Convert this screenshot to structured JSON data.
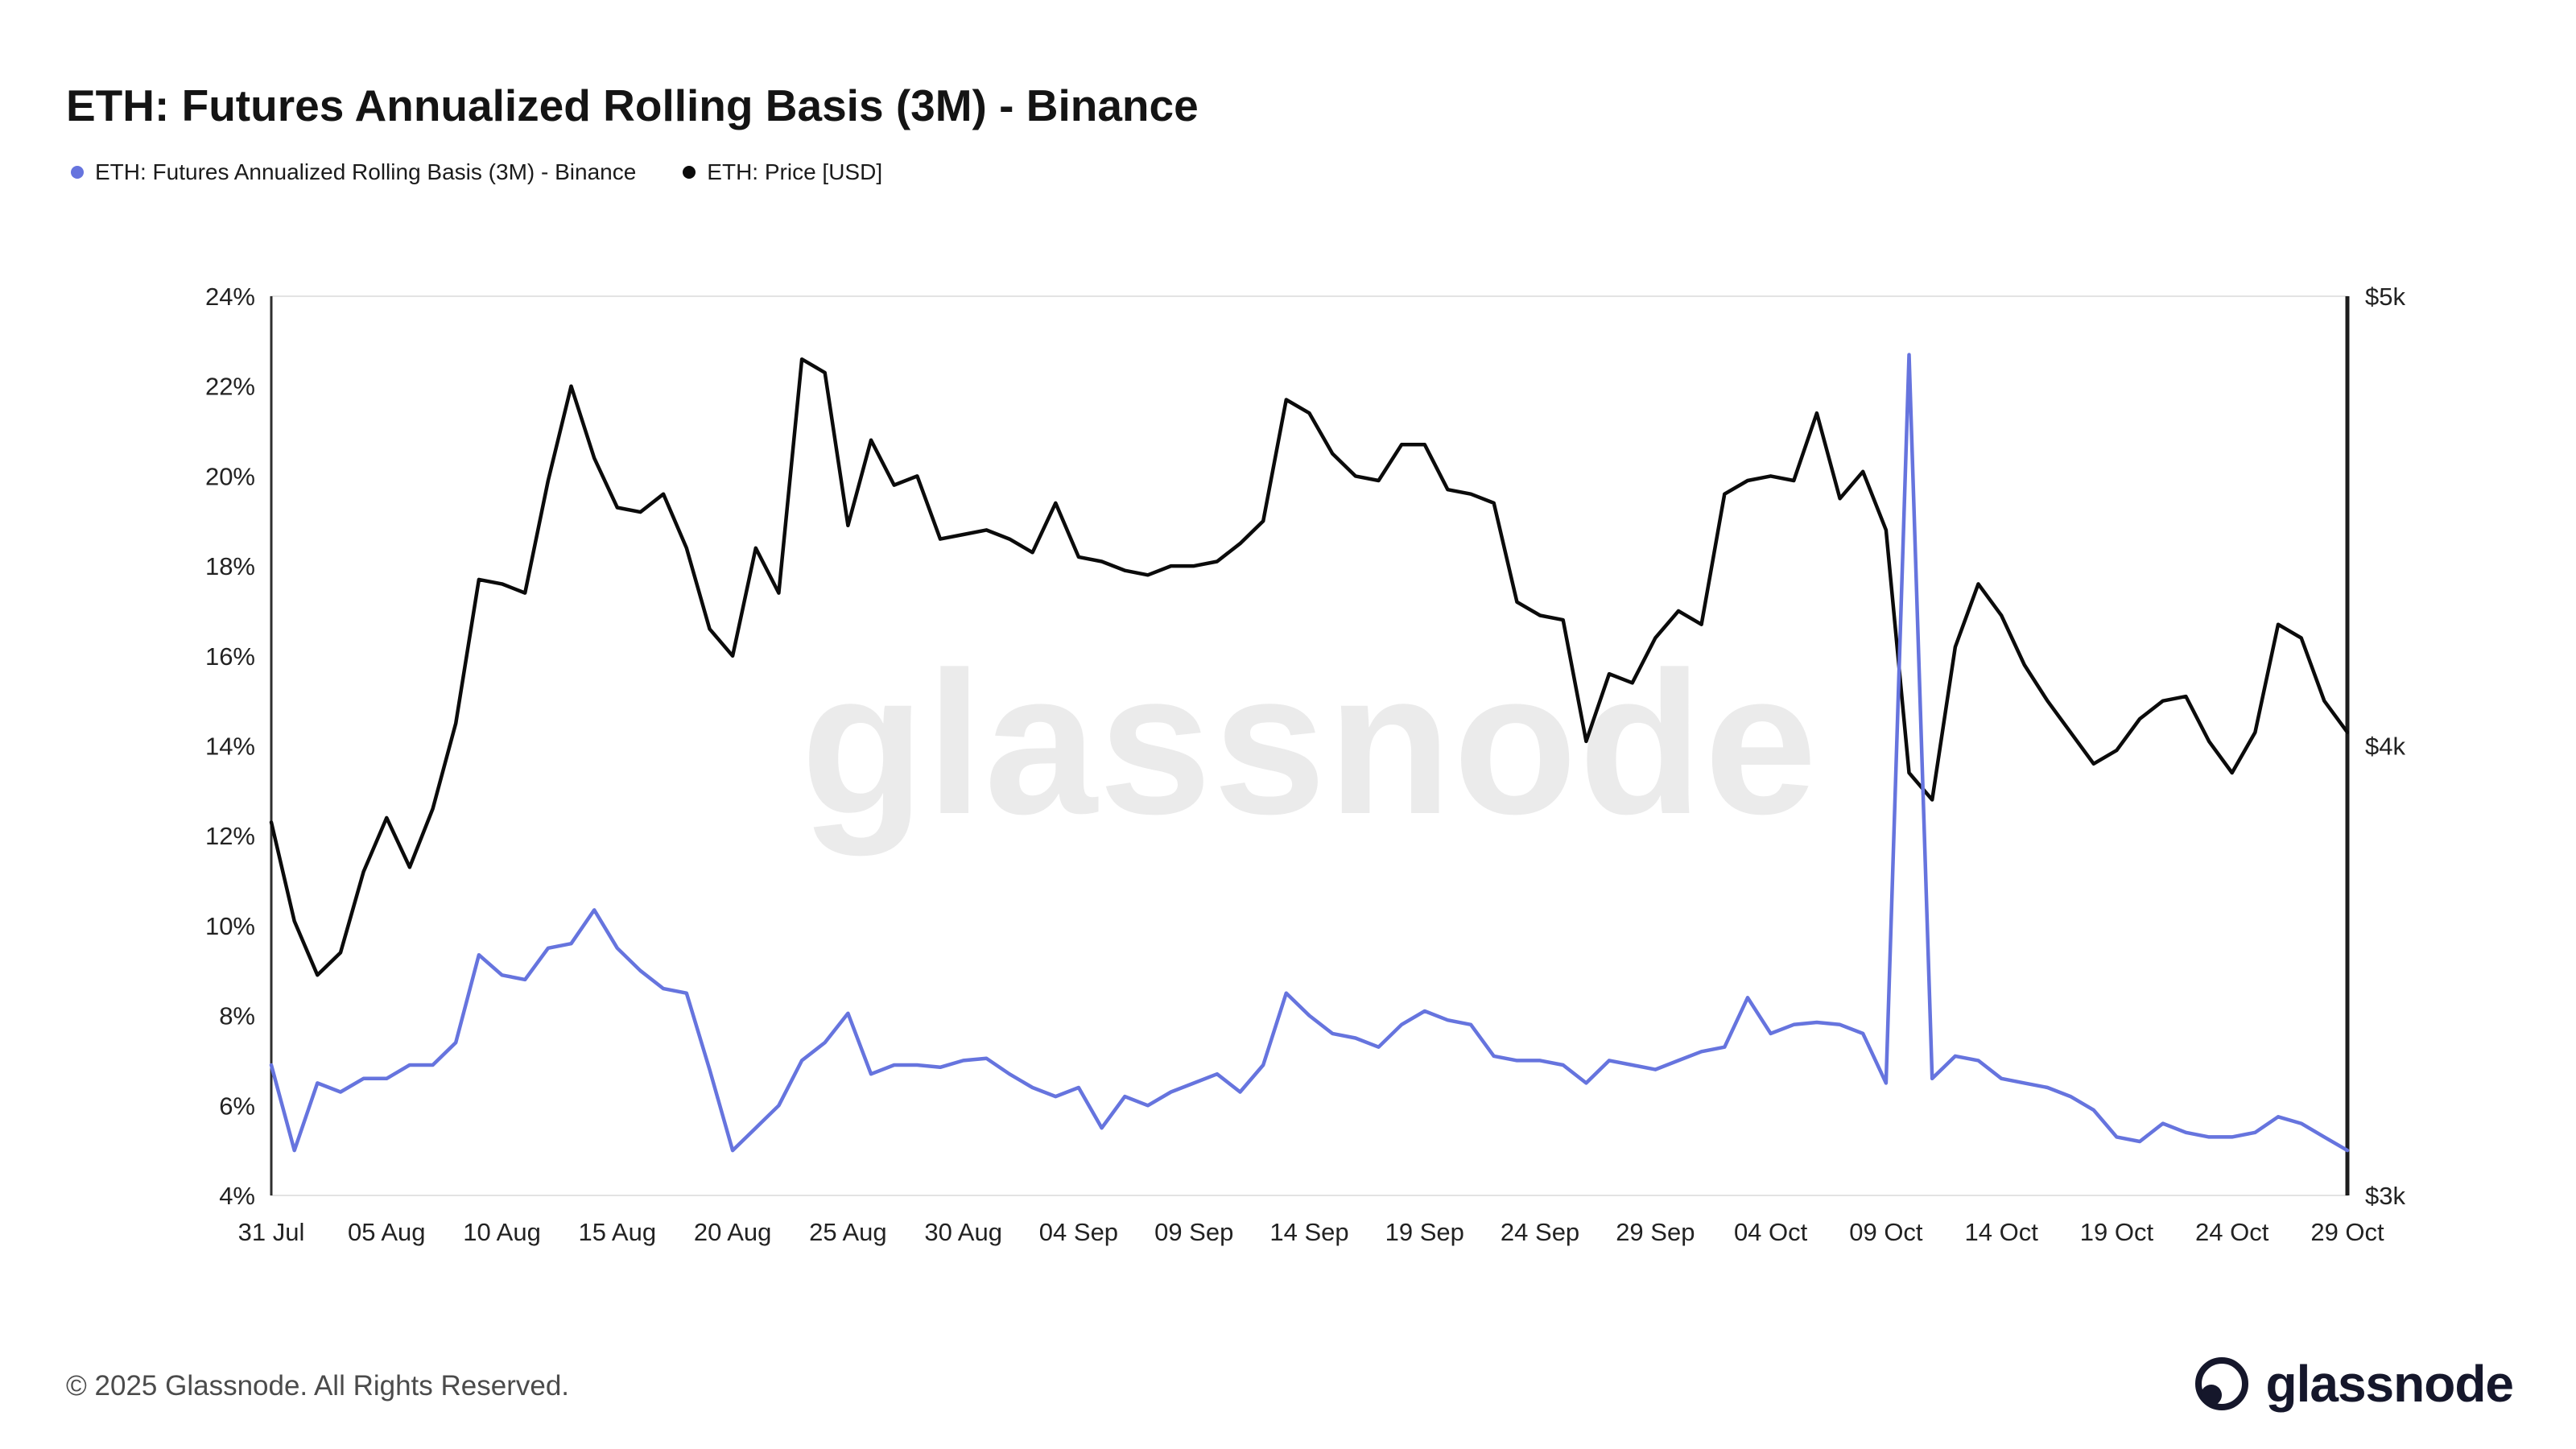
{
  "header": {
    "title": "ETH: Futures Annualized Rolling Basis (3M) - Binance"
  },
  "watermark": "glassnode",
  "footer": {
    "copyright": "© 2025 Glassnode. All Rights Reserved.",
    "brand": "glassnode"
  },
  "chart_data": {
    "type": "line",
    "title": "ETH: Futures Annualized Rolling Basis (3M) - Binance",
    "x_tick_labels": [
      "31 Jul",
      "05 Aug",
      "10 Aug",
      "15 Aug",
      "20 Aug",
      "25 Aug",
      "30 Aug",
      "04 Sep",
      "09 Sep",
      "14 Sep",
      "19 Sep",
      "24 Sep",
      "29 Sep",
      "04 Oct",
      "09 Oct",
      "14 Oct",
      "19 Oct",
      "24 Oct",
      "29 Oct"
    ],
    "x_tick_indices": [
      0,
      5,
      10,
      15,
      20,
      25,
      30,
      35,
      40,
      45,
      50,
      55,
      60,
      65,
      70,
      75,
      80,
      85,
      90
    ],
    "left_axis": {
      "min": 4,
      "max": 24,
      "suffix": "%",
      "ticks": [
        4,
        6,
        8,
        10,
        12,
        14,
        16,
        18,
        20,
        22,
        24
      ]
    },
    "right_axis": {
      "min": 3000,
      "max": 5000,
      "ticks": [
        {
          "value": 3000,
          "label": "$3k"
        },
        {
          "value": 4000,
          "label": "$4k"
        },
        {
          "value": 5000,
          "label": "$5k"
        }
      ]
    },
    "grid": false,
    "legend_position": "top-left",
    "series": [
      {
        "name": "ETH: Futures Annualized Rolling Basis (3M) - Binance",
        "color": "#6674de",
        "axis": "left",
        "unit": "%",
        "values": [
          6.9,
          5.0,
          6.5,
          6.3,
          6.6,
          6.6,
          6.9,
          6.9,
          7.4,
          9.35,
          8.9,
          8.8,
          9.5,
          9.6,
          10.35,
          9.5,
          9.0,
          8.6,
          8.5,
          6.8,
          5.0,
          5.5,
          6.0,
          7.0,
          7.4,
          8.05,
          6.7,
          6.9,
          6.9,
          6.85,
          7.0,
          7.05,
          6.7,
          6.4,
          6.2,
          6.4,
          5.5,
          6.2,
          6.0,
          6.3,
          6.5,
          6.7,
          6.3,
          6.9,
          8.5,
          8.0,
          7.6,
          7.5,
          7.3,
          7.8,
          8.1,
          7.9,
          7.8,
          7.1,
          7.0,
          7.0,
          6.9,
          6.5,
          7.0,
          6.9,
          6.8,
          7.0,
          7.2,
          7.3,
          8.4,
          7.6,
          7.8,
          7.85,
          7.8,
          7.6,
          6.5,
          22.7,
          6.6,
          7.1,
          7.0,
          6.6,
          6.5,
          6.4,
          6.2,
          5.9,
          5.3,
          5.2,
          5.6,
          5.4,
          5.3,
          5.3,
          5.4,
          5.75,
          5.6,
          5.3,
          5.0
        ]
      },
      {
        "name": "ETH: Price [USD]",
        "color": "#0b0b0b",
        "axis": "right",
        "unit": "USD",
        "values": [
          3830,
          3610,
          3490,
          3540,
          3720,
          3840,
          3730,
          3860,
          4050,
          4370,
          4360,
          4340,
          4590,
          4800,
          4640,
          4530,
          4520,
          4560,
          4440,
          4260,
          4200,
          4440,
          4340,
          4860,
          4830,
          4490,
          4680,
          4580,
          4600,
          4460,
          4470,
          4480,
          4460,
          4430,
          4540,
          4420,
          4410,
          4390,
          4380,
          4400,
          4400,
          4410,
          4450,
          4500,
          4770,
          4740,
          4650,
          4600,
          4590,
          4670,
          4670,
          4570,
          4560,
          4540,
          4320,
          4290,
          4280,
          4010,
          4160,
          4140,
          4240,
          4300,
          4270,
          4560,
          4590,
          4600,
          4590,
          4740,
          4550,
          4610,
          4480,
          3940,
          3880,
          4220,
          4360,
          4290,
          4180,
          4100,
          4030,
          3960,
          3990,
          4060,
          4100,
          4110,
          4010,
          3940,
          4030,
          4270,
          4240,
          4100,
          4030
        ]
      }
    ]
  }
}
